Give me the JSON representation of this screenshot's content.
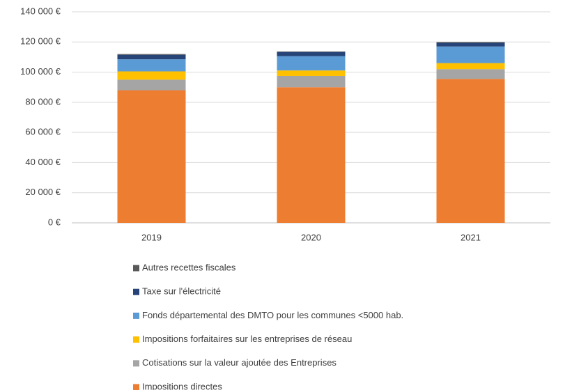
{
  "chart_data": {
    "type": "stacked_bar",
    "categories": [
      "2019",
      "2020",
      "2021"
    ],
    "series": [
      {
        "name": "Impositions directes",
        "color": "#ed7d31",
        "values": [
          88000,
          90000,
          95500
        ]
      },
      {
        "name": "Cotisations sur la valeur ajoutée des Entreprises",
        "color": "#a5a5a5",
        "values": [
          7000,
          7500,
          6500
        ]
      },
      {
        "name": "Impositions forfaitaires sur les entreprises de réseau",
        "color": "#ffc000",
        "values": [
          5500,
          3600,
          4000
        ]
      },
      {
        "name": "Fonds départemental des DMTO pour les communes <5000 hab.",
        "color": "#5b9bd5",
        "values": [
          8000,
          9500,
          11000
        ]
      },
      {
        "name": "Taxe sur l'électricité",
        "color": "#264478",
        "values": [
          3000,
          2800,
          2500
        ]
      },
      {
        "name": "Autres recettes fiscales",
        "color": "#595959",
        "values": [
          500,
          300,
          500
        ]
      }
    ],
    "ylim": [
      0,
      140000
    ],
    "yticks": [
      {
        "value": 0,
        "label": "0 €"
      },
      {
        "value": 20000,
        "label": "20 000 €"
      },
      {
        "value": 40000,
        "label": "40 000 €"
      },
      {
        "value": 60000,
        "label": "60 000 €"
      },
      {
        "value": 80000,
        "label": "80 000 €"
      },
      {
        "value": 100000,
        "label": "100 000 €"
      },
      {
        "value": 120000,
        "label": "120 000 €"
      },
      {
        "value": 140000,
        "label": "140 000 €"
      }
    ],
    "grid": true
  }
}
